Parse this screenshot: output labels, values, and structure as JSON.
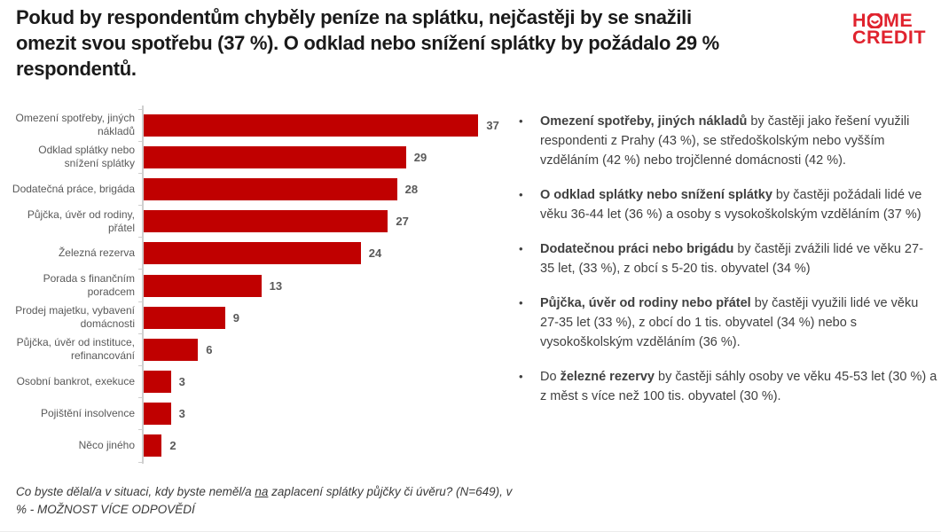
{
  "title": {
    "lines": [
      "Pokud by respondentům chyběly peníze na splátku, nejčastěji by se snažili",
      "omezit svou spotřebu (37 %). O odklad nebo snížení splátky by požádalo 29 %",
      "respondentů."
    ],
    "full_text": "Pokud by respondentům chyběly peníze na splátku, nejčastěji by se snažili omezit svou spotřebu (37 %). O odklad nebo snížení splátky by požádalo 29 % respondentů."
  },
  "logo": {
    "line1_left": "H",
    "line1_right": "ME",
    "line2": "CREDIT"
  },
  "chart_data": {
    "type": "bar",
    "orientation": "horizontal",
    "categories": [
      "Omezení spotřeby, jiných nákladů",
      "Odklad splátky nebo snížení splátky",
      "Dodatečná práce, brigáda",
      "Půjčka, úvěr od rodiny, přátel",
      "Železná rezerva",
      "Porada s finančním poradcem",
      "Prodej majetku, vybavení domácnosti",
      "Půjčka, úvěr od instituce, refinancování",
      "Osobní bankrot, exekuce",
      "Pojištění insolvence",
      "Něco jiného"
    ],
    "values": [
      37,
      29,
      28,
      27,
      24,
      13,
      9,
      6,
      3,
      3,
      2
    ],
    "unit": "%",
    "xlim": [
      0,
      40
    ],
    "grid": false,
    "legend": false,
    "data_labels": true
  },
  "bullets": [
    {
      "segments": [
        {
          "t": "Omezení spotřeby, jiných nákladů",
          "b": true
        },
        {
          "t": " by častěji jako řešení využili respondenti z Prahy (43 %), se středoškolským nebo vyšším vzděláním (42 %) nebo trojčlenné domácnosti (42 %).",
          "b": false
        }
      ]
    },
    {
      "segments": [
        {
          "t": "O odklad splátky nebo snížení splátky",
          "b": true
        },
        {
          "t": " by častěji požádali lidé ve věku 36-44 let (36 %) a osoby s vysokoškolským vzděláním (37 %)",
          "b": false
        }
      ]
    },
    {
      "segments": [
        {
          "t": "Dodatečnou práci nebo brigádu",
          "b": true
        },
        {
          "t": " by častěji zvážili lidé ve věku 27-35 let, (33 %), z obcí s 5-20 tis. obyvatel (34 %)",
          "b": false
        }
      ]
    },
    {
      "segments": [
        {
          "t": "Půjčka, úvěr od rodiny nebo přátel",
          "b": true
        },
        {
          "t": " by častěji využili lidé ve věku 27-35 let (33 %), z obcí do 1 tis. obyvatel (34 %) nebo s vysokoškolským vzděláním (36 %).",
          "b": false
        }
      ]
    },
    {
      "segments": [
        {
          "t": "Do ",
          "b": false
        },
        {
          "t": "železné rezervy",
          "b": true
        },
        {
          "t": " by častěji sáhly osoby ve věku 45-53 let (30 %) a z měst s více než 100 tis. obyvatel (30 %).",
          "b": false
        }
      ]
    }
  ],
  "footnote": {
    "pre": "Co byste dělal/a v situaci, kdy byste neměl/a ",
    "underlined": "na",
    "post": " zaplacení splátky půjčky či úvěru? (N=649), v % - MOŽNOST VÍCE ODPOVĚDÍ"
  },
  "colors": {
    "bar": "#c00000",
    "logo_red": "#e0232e",
    "value_label": "#595959",
    "category_label": "#595959",
    "title": "#1a1a1a",
    "body_text": "#404040",
    "axis": "#cfcfcf"
  }
}
